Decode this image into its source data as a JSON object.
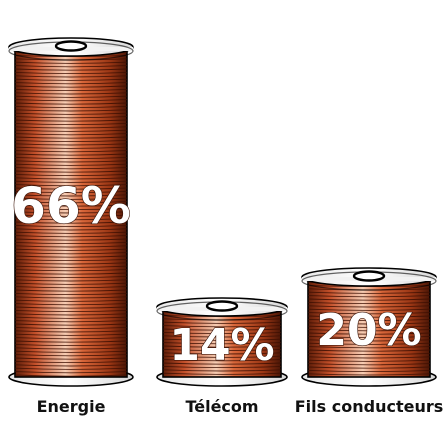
{
  "chart_data": {
    "type": "bar",
    "style": "cable spools",
    "categories": [
      "Energie",
      "Télécom",
      "Fils conducteurs"
    ],
    "values": [
      66,
      14,
      20
    ],
    "value_labels": [
      "66%",
      "14%",
      "20%"
    ],
    "unit": "%",
    "title": "",
    "xlabel": "",
    "ylabel": "",
    "grid": false,
    "legend": "none",
    "colors": {
      "copper_dark": "#7a2a10",
      "copper_mid": "#c4502a",
      "copper_light": "#f2c2a6",
      "spool_rim": "#ffffff",
      "outline": "#000000"
    }
  }
}
